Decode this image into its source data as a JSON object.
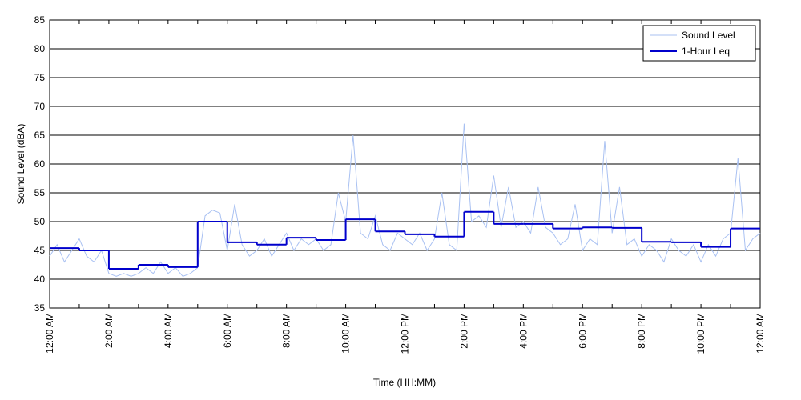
{
  "chart_data": {
    "type": "line",
    "xlabel": "Time (HH:MM)",
    "ylabel": "Sound Level (dBA)",
    "xlim": [
      0,
      24
    ],
    "xticks": [
      {
        "value": 0,
        "label": "12:00 AM"
      },
      {
        "value": 2,
        "label": "2:00 AM"
      },
      {
        "value": 4,
        "label": "4:00 AM"
      },
      {
        "value": 6,
        "label": "6:00 AM"
      },
      {
        "value": 8,
        "label": "8:00 AM"
      },
      {
        "value": 10,
        "label": "10:00 AM"
      },
      {
        "value": 12,
        "label": "12:00 PM"
      },
      {
        "value": 14,
        "label": "2:00 PM"
      },
      {
        "value": 16,
        "label": "4:00 PM"
      },
      {
        "value": 18,
        "label": "6:00 PM"
      },
      {
        "value": 20,
        "label": "8:00 PM"
      },
      {
        "value": 22,
        "label": "10:00 PM"
      },
      {
        "value": 24,
        "label": "12:00 AM"
      }
    ],
    "xminor_ticks": [
      1,
      3,
      5,
      7,
      9,
      11,
      13,
      15,
      17,
      19,
      21,
      23
    ],
    "ylim": [
      35,
      85
    ],
    "yticks": [
      35,
      40,
      45,
      50,
      55,
      60,
      65,
      70,
      75,
      80,
      85
    ],
    "grid": true,
    "legend": "upper right",
    "series": [
      {
        "name": "Sound Level",
        "color": "#a9c1f2",
        "width": 1,
        "x": [
          0,
          0.25,
          0.5,
          0.75,
          1,
          1.25,
          1.5,
          1.75,
          2,
          2.25,
          2.5,
          2.75,
          3,
          3.25,
          3.5,
          3.75,
          4,
          4.25,
          4.5,
          4.75,
          5,
          5.25,
          5.5,
          5.75,
          6,
          6.25,
          6.5,
          6.75,
          7,
          7.25,
          7.5,
          7.75,
          8,
          8.25,
          8.5,
          8.75,
          9,
          9.25,
          9.5,
          9.75,
          10,
          10.25,
          10.5,
          10.75,
          11,
          11.25,
          11.5,
          11.75,
          12,
          12.25,
          12.5,
          12.75,
          13,
          13.25,
          13.5,
          13.75,
          14,
          14.25,
          14.5,
          14.75,
          15,
          15.25,
          15.5,
          15.75,
          16,
          16.25,
          16.5,
          16.75,
          17,
          17.25,
          17.5,
          17.75,
          18,
          18.25,
          18.5,
          18.75,
          19,
          19.25,
          19.5,
          19.75,
          20,
          20.25,
          20.5,
          20.75,
          21,
          21.25,
          21.5,
          21.75,
          22,
          22.25,
          22.5,
          22.75,
          23,
          23.25,
          23.5,
          23.75,
          24
        ],
        "values": [
          44,
          46,
          43,
          45,
          47,
          44,
          43,
          45,
          41,
          40.5,
          41,
          40.5,
          41,
          42,
          41,
          43,
          41,
          42,
          40.5,
          41,
          42,
          51,
          52,
          51.5,
          45,
          53,
          46,
          44,
          45,
          47,
          44,
          46,
          48,
          45,
          47,
          46,
          47,
          45,
          46,
          55,
          50,
          65,
          48,
          47,
          51,
          46,
          45,
          48,
          47,
          46,
          48,
          45,
          47,
          55,
          46,
          45,
          67,
          50,
          51,
          49,
          58,
          49,
          56,
          49,
          50,
          48,
          56,
          49,
          48,
          46,
          47,
          53,
          45,
          47,
          46,
          64,
          48,
          56,
          46,
          47,
          44,
          46,
          45,
          43,
          47,
          45,
          44,
          46,
          43,
          46,
          44,
          47,
          48,
          61,
          45,
          47,
          48
        ]
      },
      {
        "name": "1-Hour Leq",
        "color": "#0000cc",
        "width": 2,
        "step": "post",
        "x": [
          0,
          1,
          2,
          3,
          4,
          5,
          6,
          7,
          8,
          9,
          10,
          11,
          12,
          13,
          14,
          15,
          16,
          17,
          18,
          19,
          20,
          21,
          22,
          23
        ],
        "values": [
          45.4,
          45.0,
          41.8,
          42.5,
          42.1,
          50.0,
          46.4,
          46.0,
          47.2,
          46.8,
          50.4,
          48.3,
          47.8,
          47.4,
          51.7,
          49.6,
          49.6,
          48.8,
          49.0,
          48.9,
          46.5,
          46.4,
          45.6,
          48.8
        ]
      }
    ]
  }
}
